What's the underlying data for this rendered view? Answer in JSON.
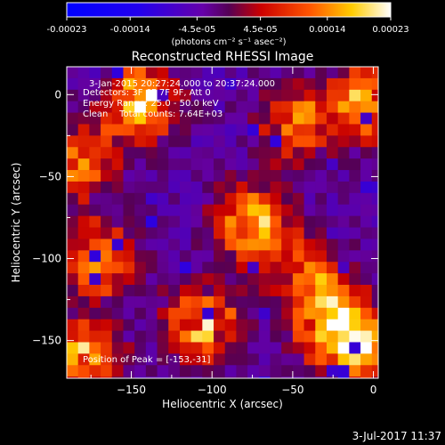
{
  "colorbar": {
    "tick_labels": [
      "-0.00023",
      "-0.00014",
      "-4.5e-05",
      "4.5e-05",
      "0.00014",
      "0.00023"
    ],
    "tick_values": [
      -0.00023,
      -0.00014,
      -4.5e-05,
      4.5e-05,
      0.00014,
      0.00023
    ],
    "range": [
      -0.00023,
      0.00023
    ],
    "units_label": "(photons cm⁻² s⁻¹ asec⁻²)"
  },
  "chart_data": {
    "type": "heatmap",
    "title": "Reconstructed RHESSI Image",
    "xlabel": "Heliocentric X (arcsec)",
    "ylabel": "Heliocentric Y (arcsec)",
    "xlim": [
      -190,
      3
    ],
    "ylim": [
      -173,
      17
    ],
    "x_ticks": [
      -150,
      -100,
      -50,
      0
    ],
    "x_tick_labels": [
      "−150",
      "−100",
      "−50",
      "0"
    ],
    "y_ticks": [
      0,
      -50,
      -100,
      -150
    ],
    "y_tick_labels": [
      "0",
      "−50",
      "−100",
      "−150"
    ],
    "grid": false,
    "annotations": {
      "time_range": "3-Jan-2015 20:27:24.000 to 20:37:24.000",
      "detectors": "Detectors: 3F 6F 7F 9F, Att 0",
      "energy": "Energy Range: 25.0 - 50.0 keV",
      "clean": "Clean    Total counts: 7.64E+03",
      "peak": "Position of Peak = [-153,-31]"
    },
    "bright_sources": [
      {
        "x": -145,
        "y": -5,
        "intensity": 0.95
      },
      {
        "x": -180,
        "y": -40,
        "intensity": 0.65
      },
      {
        "x": -5,
        "y": -5,
        "intensity": 0.9
      },
      {
        "x": -50,
        "y": -20,
        "intensity": 0.7
      },
      {
        "x": -75,
        "y": -80,
        "intensity": 0.95
      },
      {
        "x": -170,
        "y": -100,
        "intensity": 0.75
      },
      {
        "x": -40,
        "y": -110,
        "intensity": 0.6
      },
      {
        "x": -25,
        "y": -140,
        "intensity": 0.95
      },
      {
        "x": -105,
        "y": -140,
        "intensity": 0.85
      },
      {
        "x": -180,
        "y": -160,
        "intensity": 0.8
      },
      {
        "x": -5,
        "y": -160,
        "intensity": 0.75
      }
    ]
  },
  "footer": {
    "date": "3-Jul-2017 11:37"
  }
}
